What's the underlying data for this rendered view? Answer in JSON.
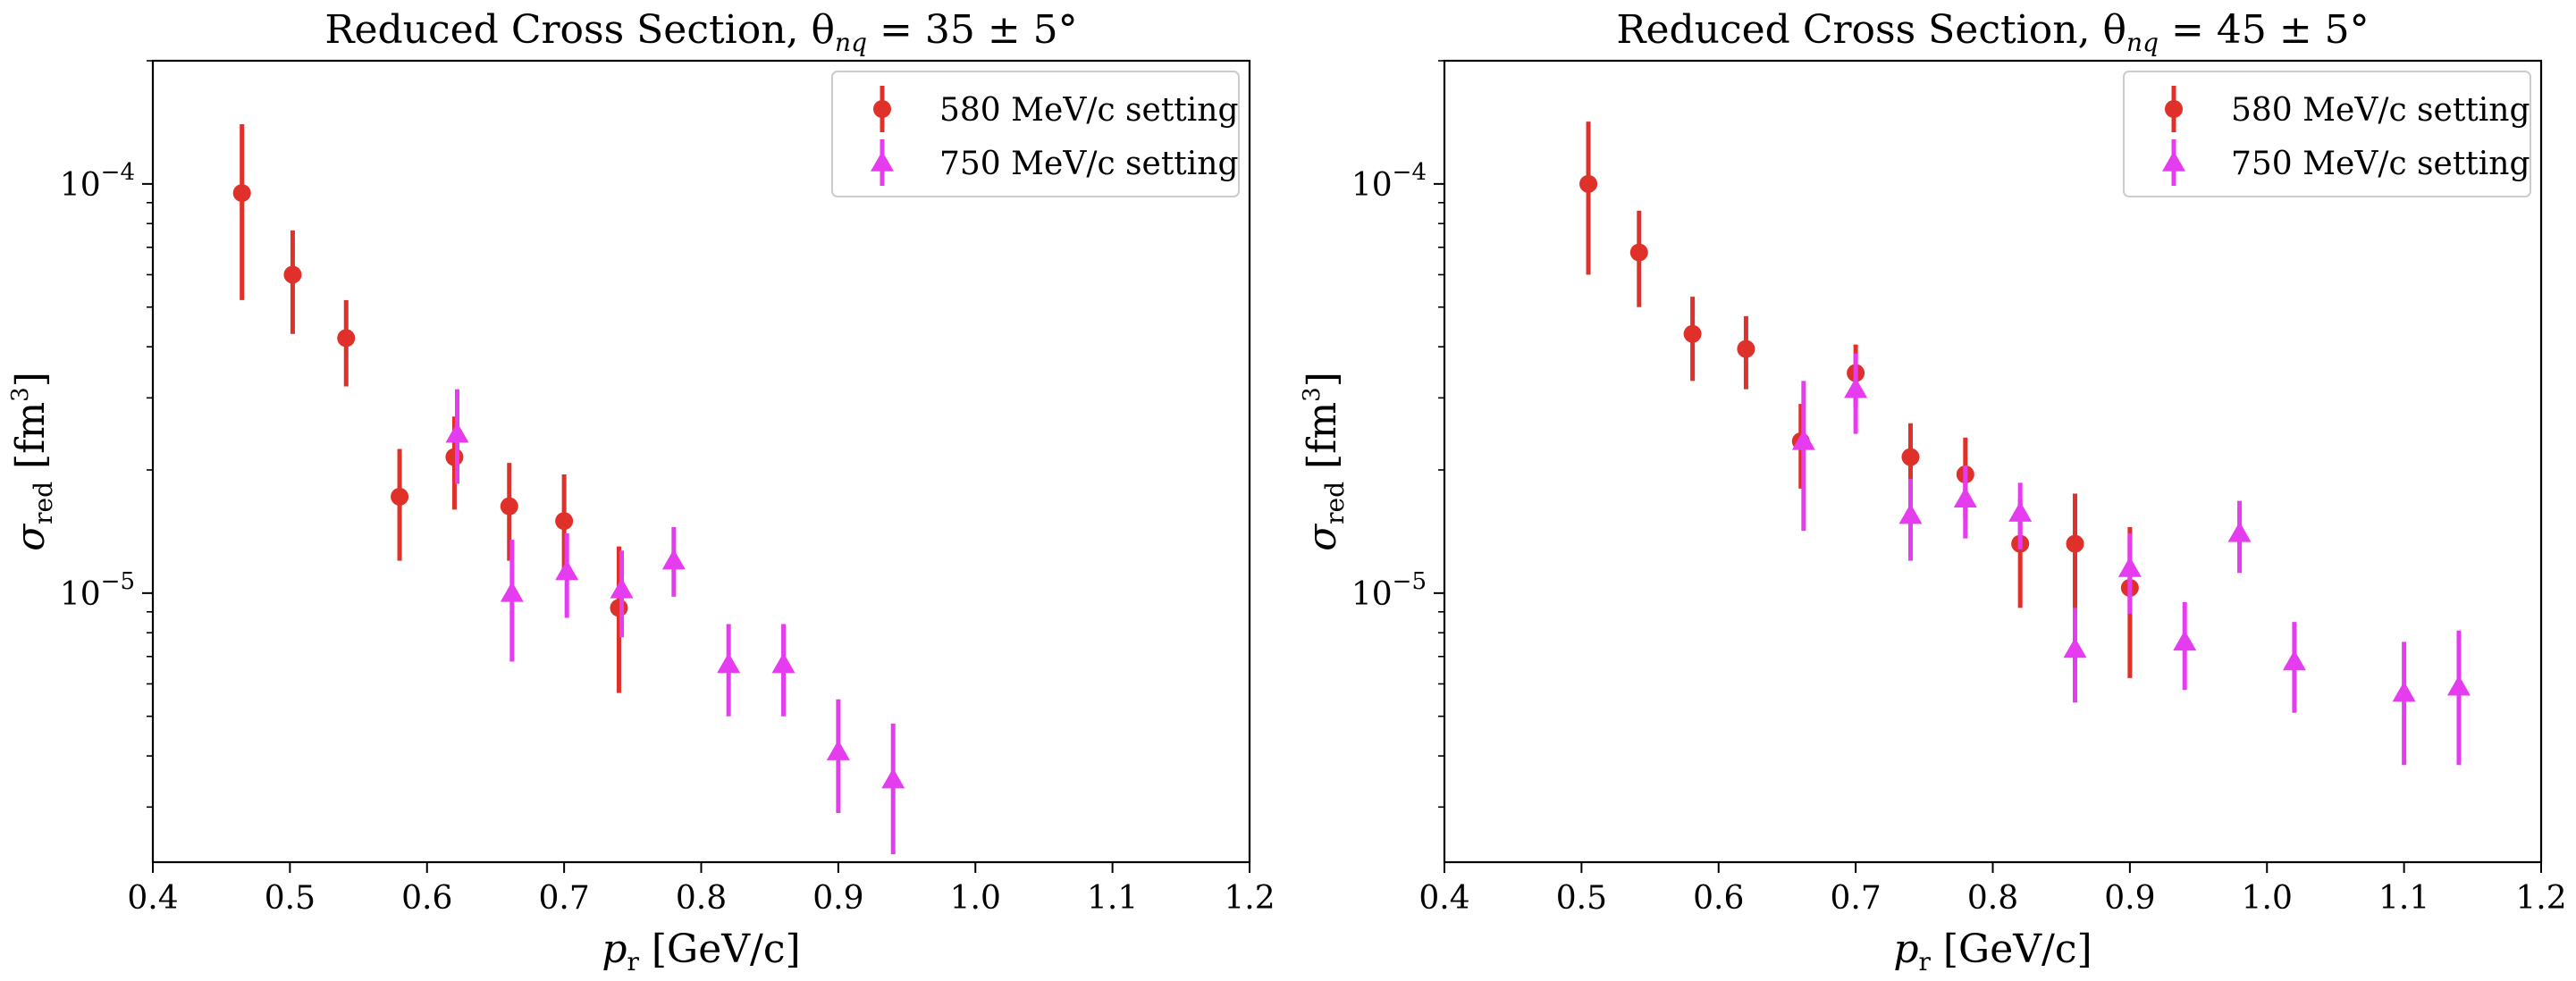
{
  "chart_data": [
    {
      "type": "scatter",
      "title": "Reduced Cross Section, θ",
      "title_subscript": "nq",
      "title_suffix": " = 35 ± 5°",
      "xlabel": "p",
      "xlabel_subscript": "r",
      "xlabel_suffix": " [GeV/c]",
      "ylabel": "σ",
      "ylabel_subscript": "red",
      "ylabel_suffix": " [fm",
      "ylabel_superscript": "3",
      "ylabel_close": "]",
      "xlim": [
        0.4,
        1.2
      ],
      "ylim": [
        2.2e-06,
        0.0002
      ],
      "yscale": "log",
      "xticks": [
        "0.4",
        "0.5",
        "0.6",
        "0.7",
        "0.8",
        "0.9",
        "1.0",
        "1.1",
        "1.2"
      ],
      "yticks": [
        {
          "value": 1e-05,
          "base": "10",
          "exp": "−5"
        },
        {
          "value": 0.0001,
          "base": "10",
          "exp": "−4"
        }
      ],
      "grid": false,
      "legend_position": "upper right",
      "series": [
        {
          "name": "580 MeV/c setting",
          "color": "#e0302a",
          "marker": "circle",
          "points": [
            {
              "x": 0.465,
              "y": 9.5e-05,
              "lo": 5.2e-05,
              "hi": 0.00014
            },
            {
              "x": 0.502,
              "y": 6e-05,
              "lo": 4.3e-05,
              "hi": 7.7e-05
            },
            {
              "x": 0.541,
              "y": 4.2e-05,
              "lo": 3.2e-05,
              "hi": 5.2e-05
            },
            {
              "x": 0.58,
              "y": 1.72e-05,
              "lo": 1.2e-05,
              "hi": 2.25e-05
            },
            {
              "x": 0.62,
              "y": 2.15e-05,
              "lo": 1.6e-05,
              "hi": 2.7e-05
            },
            {
              "x": 0.66,
              "y": 1.63e-05,
              "lo": 1.2e-05,
              "hi": 2.08e-05
            },
            {
              "x": 0.7,
              "y": 1.5e-05,
              "lo": 1.08e-05,
              "hi": 1.95e-05
            },
            {
              "x": 0.74,
              "y": 9.2e-06,
              "lo": 5.7e-06,
              "hi": 1.3e-05
            }
          ]
        },
        {
          "name": "750 MeV/c setting",
          "color": "#e63cf0",
          "marker": "triangle",
          "points": [
            {
              "x": 0.622,
              "y": 2.45e-05,
              "lo": 1.85e-05,
              "hi": 3.15e-05
            },
            {
              "x": 0.662,
              "y": 1e-05,
              "lo": 6.8e-06,
              "hi": 1.35e-05
            },
            {
              "x": 0.702,
              "y": 1.13e-05,
              "lo": 8.7e-06,
              "hi": 1.4e-05
            },
            {
              "x": 0.742,
              "y": 1.02e-05,
              "lo": 7.8e-06,
              "hi": 1.27e-05
            },
            {
              "x": 0.78,
              "y": 1.2e-05,
              "lo": 9.8e-06,
              "hi": 1.45e-05
            },
            {
              "x": 0.82,
              "y": 6.7e-06,
              "lo": 5e-06,
              "hi": 8.4e-06
            },
            {
              "x": 0.86,
              "y": 6.7e-06,
              "lo": 5e-06,
              "hi": 8.4e-06
            },
            {
              "x": 0.9,
              "y": 4.1e-06,
              "lo": 2.9e-06,
              "hi": 5.5e-06
            },
            {
              "x": 0.94,
              "y": 3.5e-06,
              "lo": 2.3e-06,
              "hi": 4.8e-06
            }
          ]
        }
      ]
    },
    {
      "type": "scatter",
      "title": "Reduced Cross Section, θ",
      "title_subscript": "nq",
      "title_suffix": " = 45 ± 5°",
      "xlabel": "p",
      "xlabel_subscript": "r",
      "xlabel_suffix": " [GeV/c]",
      "ylabel": "σ",
      "ylabel_subscript": "red",
      "ylabel_suffix": " [fm",
      "ylabel_superscript": "3",
      "ylabel_close": "]",
      "xlim": [
        0.4,
        1.2
      ],
      "ylim": [
        2.2e-06,
        0.0002
      ],
      "yscale": "log",
      "xticks": [
        "0.4",
        "0.5",
        "0.6",
        "0.7",
        "0.8",
        "0.9",
        "1.0",
        "1.1",
        "1.2"
      ],
      "yticks": [
        {
          "value": 1e-05,
          "base": "10",
          "exp": "−5"
        },
        {
          "value": 0.0001,
          "base": "10",
          "exp": "−4"
        }
      ],
      "grid": false,
      "legend_position": "upper right",
      "series": [
        {
          "name": "580 MeV/c setting",
          "color": "#e0302a",
          "marker": "circle",
          "points": [
            {
              "x": 0.505,
              "y": 0.0001,
              "lo": 6e-05,
              "hi": 0.000142
            },
            {
              "x": 0.542,
              "y": 6.8e-05,
              "lo": 5e-05,
              "hi": 8.6e-05
            },
            {
              "x": 0.581,
              "y": 4.3e-05,
              "lo": 3.3e-05,
              "hi": 5.3e-05
            },
            {
              "x": 0.62,
              "y": 3.95e-05,
              "lo": 3.15e-05,
              "hi": 4.75e-05
            },
            {
              "x": 0.66,
              "y": 2.35e-05,
              "lo": 1.8e-05,
              "hi": 2.9e-05
            },
            {
              "x": 0.7,
              "y": 3.45e-05,
              "lo": 2.85e-05,
              "hi": 4.05e-05
            },
            {
              "x": 0.74,
              "y": 2.15e-05,
              "lo": 1.7e-05,
              "hi": 2.6e-05
            },
            {
              "x": 0.78,
              "y": 1.95e-05,
              "lo": 1.53e-05,
              "hi": 2.4e-05
            },
            {
              "x": 0.82,
              "y": 1.32e-05,
              "lo": 9.2e-06,
              "hi": 1.7e-05
            },
            {
              "x": 0.86,
              "y": 1.32e-05,
              "lo": 9e-06,
              "hi": 1.75e-05
            },
            {
              "x": 0.9,
              "y": 1.03e-05,
              "lo": 6.2e-06,
              "hi": 1.45e-05
            }
          ]
        },
        {
          "name": "750 MeV/c setting",
          "color": "#e63cf0",
          "marker": "triangle",
          "points": [
            {
              "x": 0.662,
              "y": 2.35e-05,
              "lo": 1.42e-05,
              "hi": 3.3e-05
            },
            {
              "x": 0.7,
              "y": 3.15e-05,
              "lo": 2.45e-05,
              "hi": 3.85e-05
            },
            {
              "x": 0.74,
              "y": 1.55e-05,
              "lo": 1.2e-05,
              "hi": 1.9e-05
            },
            {
              "x": 0.78,
              "y": 1.7e-05,
              "lo": 1.36e-05,
              "hi": 2.05e-05
            },
            {
              "x": 0.82,
              "y": 1.57e-05,
              "lo": 1.28e-05,
              "hi": 1.86e-05
            },
            {
              "x": 0.86,
              "y": 7.3e-06,
              "lo": 5.4e-06,
              "hi": 9.2e-06
            },
            {
              "x": 0.9,
              "y": 1.15e-05,
              "lo": 8.9e-06,
              "hi": 1.4e-05
            },
            {
              "x": 0.94,
              "y": 7.6e-06,
              "lo": 5.8e-06,
              "hi": 9.5e-06
            },
            {
              "x": 0.98,
              "y": 1.4e-05,
              "lo": 1.12e-05,
              "hi": 1.68e-05
            },
            {
              "x": 1.02,
              "y": 6.8e-06,
              "lo": 5.1e-06,
              "hi": 8.5e-06
            },
            {
              "x": 1.1,
              "y": 5.7e-06,
              "lo": 3.8e-06,
              "hi": 7.6e-06
            },
            {
              "x": 1.14,
              "y": 5.9e-06,
              "lo": 3.8e-06,
              "hi": 8.1e-06
            }
          ]
        }
      ]
    }
  ]
}
